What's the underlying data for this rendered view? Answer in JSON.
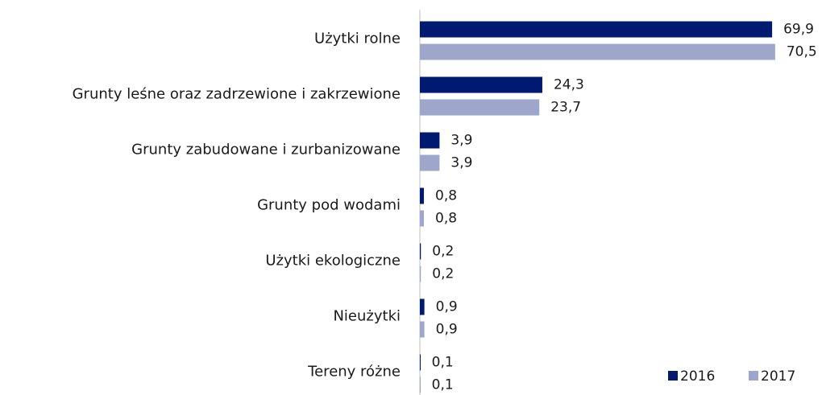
{
  "chart_data": {
    "type": "hbar",
    "categories": [
      "Użytki rolne",
      "Grunty leśne oraz zadrzewione i zakrzewione",
      "Grunty zabudowane i zurbanizowane",
      "Grunty pod wodami",
      "Użytki ekologiczne",
      "Nieużytki",
      "Tereny różne"
    ],
    "series": [
      {
        "name": "2016",
        "color": "#001a72",
        "values": [
          69.9,
          24.3,
          3.9,
          0.8,
          0.2,
          0.9,
          0.1
        ],
        "value_labels": [
          "69,9",
          "24,3",
          "3,9",
          "0,8",
          "0,2",
          "0,9",
          "0,1"
        ]
      },
      {
        "name": "2017",
        "color": "#9ea6cc",
        "values": [
          70.5,
          23.7,
          3.9,
          0.8,
          0.2,
          0.9,
          0.1
        ],
        "value_labels": [
          "70,5",
          "23,7",
          "3,9",
          "0,8",
          "0,2",
          "0,9",
          "0,1"
        ]
      }
    ],
    "xlim": [
      0,
      75
    ],
    "legend": "bottom-right"
  }
}
